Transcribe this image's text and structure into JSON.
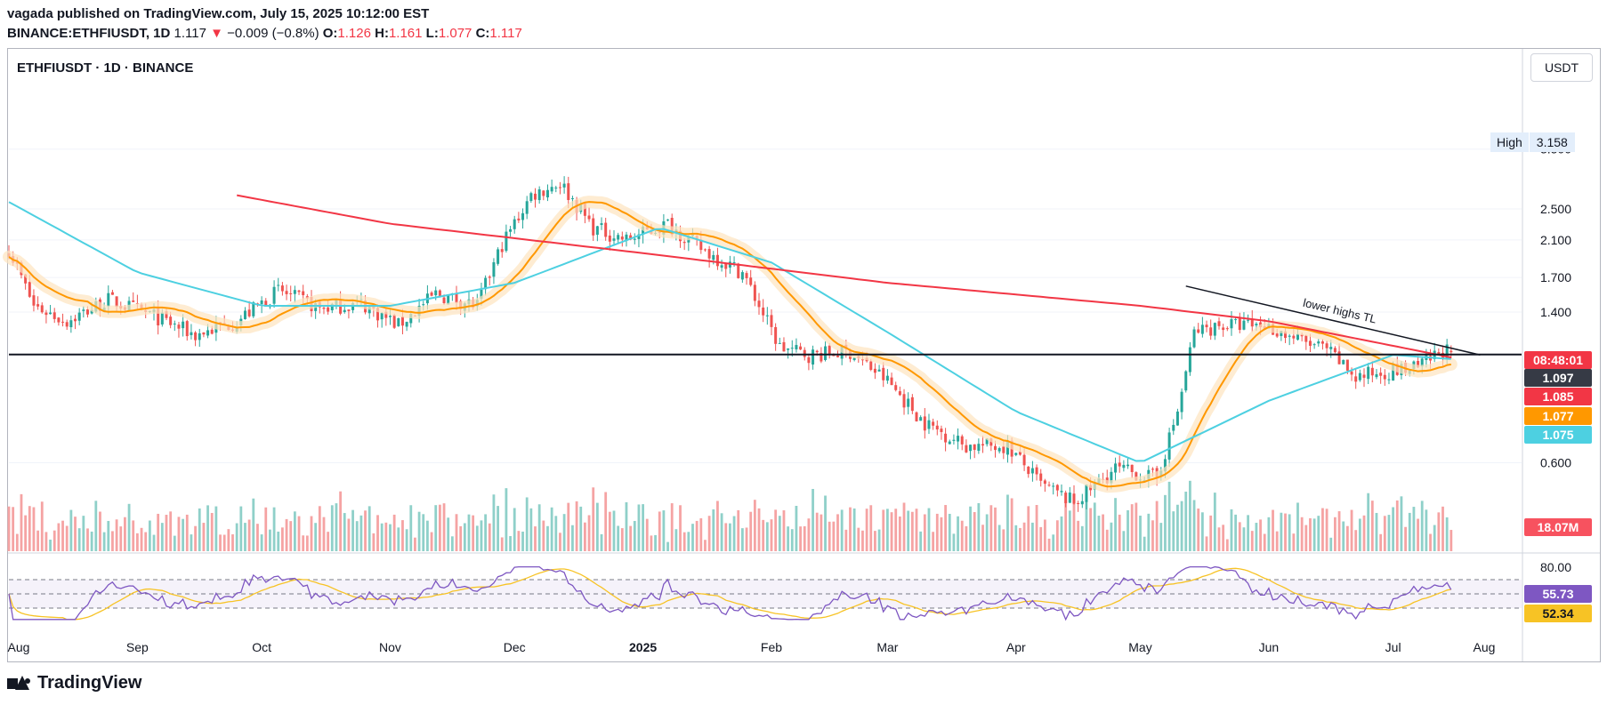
{
  "header": {
    "publisher": "vagada published on TradingView.com, July 15, 2025 10:12:00 EST",
    "symbol_line": "BINANCE:ETHFIUSDT, 1D",
    "last": "1.117",
    "change_arrow": "▼",
    "change": "−0.009 (−0.8%)",
    "open_label": "O:",
    "open": "1.126",
    "high_label": "H:",
    "high": "1.161",
    "low_label": "L:",
    "low": "1.077",
    "close_label": "C:",
    "close": "1.117"
  },
  "pane": {
    "symbol_title": "ETHFIUSDT · 1D · BINANCE",
    "currency": "USDT",
    "high_marker_label": "High",
    "high_marker_value": "3.158"
  },
  "price_tags": {
    "countdown": "08:48:01",
    "hline": "1.097",
    "ma200": "1.085",
    "ma20": "1.077",
    "ma50": "1.075",
    "volume": "18.07M",
    "rsi": "55.73",
    "rsi_ma": "52.34"
  },
  "colors": {
    "up": "#26a69a",
    "down": "#ef5350",
    "ma200": "#f23645",
    "ma50": "#4dd0e1",
    "ma20": "#ff9800",
    "rsi": "#7e57c2",
    "rsi_ma": "#f7c325",
    "hline": "#131722"
  },
  "annotation": {
    "trendline_label": "lower highs TL"
  },
  "footer": {
    "brand": "TradingView"
  },
  "chart_data": {
    "type": "candlestick",
    "title": "ETHFIUSDT · 1D · BINANCE",
    "y_scale": "log",
    "y_ticks": [
      "3.500",
      "2.500",
      "2.100",
      "1.700",
      "1.400",
      "0.600"
    ],
    "x_ticks": [
      "Aug",
      "Sep",
      "Oct",
      "Nov",
      "Dec",
      "2025",
      "Feb",
      "Mar",
      "Apr",
      "May",
      "Jun",
      "Jul",
      "Aug"
    ],
    "rsi_ticks": [
      "80.00"
    ],
    "horizontal_line": 1.097,
    "close_path": [
      {
        "date": "2024-08-01",
        "close": 2.0
      },
      {
        "date": "2024-08-07",
        "close": 1.45
      },
      {
        "date": "2024-08-15",
        "close": 1.33
      },
      {
        "date": "2024-08-25",
        "close": 1.5
      },
      {
        "date": "2024-09-05",
        "close": 1.37
      },
      {
        "date": "2024-09-15",
        "close": 1.23
      },
      {
        "date": "2024-09-25",
        "close": 1.33
      },
      {
        "date": "2024-10-05",
        "close": 1.58
      },
      {
        "date": "2024-10-15",
        "close": 1.43
      },
      {
        "date": "2024-10-25",
        "close": 1.47
      },
      {
        "date": "2024-11-03",
        "close": 1.3
      },
      {
        "date": "2024-11-12",
        "close": 1.55
      },
      {
        "date": "2024-11-22",
        "close": 1.45
      },
      {
        "date": "2024-11-28",
        "close": 2.05
      },
      {
        "date": "2024-12-05",
        "close": 2.7
      },
      {
        "date": "2024-12-12",
        "close": 2.9
      },
      {
        "date": "2024-12-20",
        "close": 2.25
      },
      {
        "date": "2024-12-28",
        "close": 2.1
      },
      {
        "date": "2025-01-07",
        "close": 2.3
      },
      {
        "date": "2025-01-15",
        "close": 2.0
      },
      {
        "date": "2025-01-25",
        "close": 1.75
      },
      {
        "date": "2025-02-03",
        "close": 1.15
      },
      {
        "date": "2025-02-10",
        "close": 1.1
      },
      {
        "date": "2025-02-20",
        "close": 1.12
      },
      {
        "date": "2025-03-01",
        "close": 0.95
      },
      {
        "date": "2025-03-10",
        "close": 0.75
      },
      {
        "date": "2025-03-20",
        "close": 0.66
      },
      {
        "date": "2025-03-30",
        "close": 0.66
      },
      {
        "date": "2025-04-07",
        "close": 0.53
      },
      {
        "date": "2025-04-15",
        "close": 0.48
      },
      {
        "date": "2025-04-25",
        "close": 0.58
      },
      {
        "date": "2025-05-05",
        "close": 0.55
      },
      {
        "date": "2025-05-10",
        "close": 0.8
      },
      {
        "date": "2025-05-14",
        "close": 1.25
      },
      {
        "date": "2025-05-20",
        "close": 1.3
      },
      {
        "date": "2025-05-31",
        "close": 1.3
      },
      {
        "date": "2025-06-08",
        "close": 1.2
      },
      {
        "date": "2025-06-15",
        "close": 1.13
      },
      {
        "date": "2025-06-22",
        "close": 0.97
      },
      {
        "date": "2025-06-28",
        "close": 1.0
      },
      {
        "date": "2025-07-07",
        "close": 1.02
      },
      {
        "date": "2025-07-13",
        "close": 1.13
      },
      {
        "date": "2025-07-15",
        "close": 1.117
      }
    ],
    "ma200_path": [
      {
        "date": "2024-09-25",
        "close": 2.7
      },
      {
        "date": "2024-11-01",
        "close": 2.3
      },
      {
        "date": "2025-01-01",
        "close": 1.95
      },
      {
        "date": "2025-03-01",
        "close": 1.65
      },
      {
        "date": "2025-05-01",
        "close": 1.45
      },
      {
        "date": "2025-06-01",
        "close": 1.33
      },
      {
        "date": "2025-07-15",
        "close": 1.085
      }
    ],
    "ma50_path": [
      {
        "date": "2024-08-01",
        "close": 2.6
      },
      {
        "date": "2024-09-01",
        "close": 1.75
      },
      {
        "date": "2024-10-01",
        "close": 1.45
      },
      {
        "date": "2024-11-01",
        "close": 1.45
      },
      {
        "date": "2024-12-01",
        "close": 1.65
      },
      {
        "date": "2025-01-05",
        "close": 2.25
      },
      {
        "date": "2025-02-01",
        "close": 1.85
      },
      {
        "date": "2025-03-01",
        "close": 1.25
      },
      {
        "date": "2025-04-01",
        "close": 0.8
      },
      {
        "date": "2025-05-01",
        "close": 0.6
      },
      {
        "date": "2025-06-01",
        "close": 0.85
      },
      {
        "date": "2025-07-01",
        "close": 1.1
      },
      {
        "date": "2025-07-15",
        "close": 1.075
      }
    ],
    "trendline": {
      "label": "lower highs TL",
      "start": {
        "date": "2025-05-12",
        "price": 1.62
      },
      "end": {
        "date": "2025-07-22",
        "price": 1.1
      }
    }
  }
}
